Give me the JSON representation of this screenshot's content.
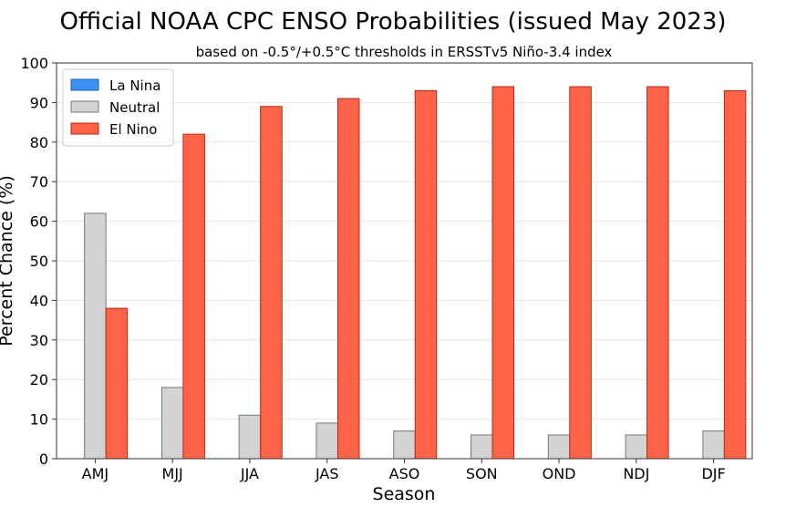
{
  "chart_data": {
    "type": "bar",
    "title": "Official NOAA CPC ENSO Probabilities (issued May 2023)",
    "subtitle": "based on -0.5°/+0.5°C thresholds in ERSSTv5 Niño-3.4 index",
    "xlabel": "Season",
    "ylabel": "Percent Chance (%)",
    "ylim": [
      0,
      100
    ],
    "yticks": [
      0,
      10,
      20,
      30,
      40,
      50,
      60,
      70,
      80,
      90,
      100
    ],
    "grid": true,
    "legend_position": "top-left",
    "categories": [
      "AMJ",
      "MJJ",
      "JJA",
      "JAS",
      "ASO",
      "SON",
      "OND",
      "NDJ",
      "DJF"
    ],
    "series": [
      {
        "name": "La Nina",
        "color": "#3b8ff5",
        "edge": "#1f5fb0",
        "values": [
          0,
          0,
          0,
          0,
          0,
          0,
          0,
          0,
          0
        ]
      },
      {
        "name": "Neutral",
        "color": "#d3d3d3",
        "edge": "#777777",
        "values": [
          62,
          18,
          11,
          9,
          7,
          6,
          6,
          6,
          7
        ]
      },
      {
        "name": "El Nino",
        "color": "#ff6347",
        "edge": "#b22a18",
        "values": [
          38,
          82,
          89,
          91,
          93,
          94,
          94,
          94,
          93
        ]
      }
    ]
  }
}
